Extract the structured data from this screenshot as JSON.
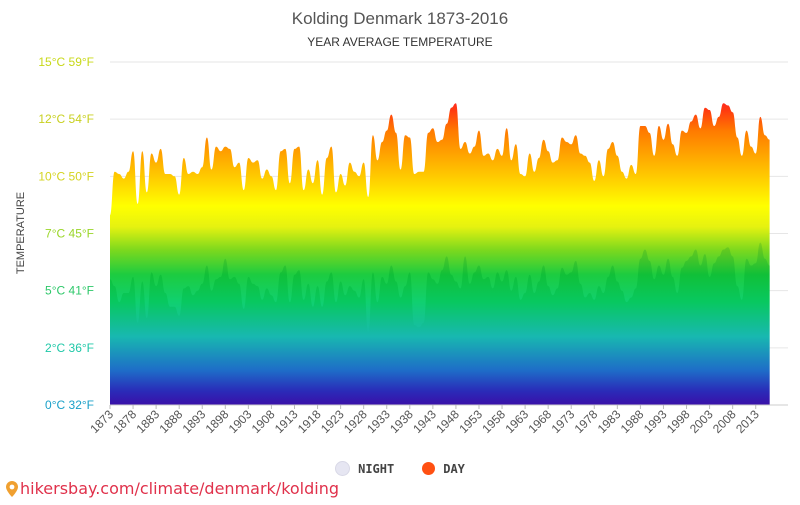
{
  "chart_data": {
    "type": "area",
    "title": "Kolding Denmark 1873-2016",
    "subtitle": "YEAR AVERAGE TEMPERATURE",
    "ylabel": "TEMPERATURE",
    "y_ticks": [
      {
        "value": 0,
        "label": "0°C 32°F",
        "color": "#1aa0c8"
      },
      {
        "value": 2.5,
        "label": "2°C 36°F",
        "color": "#20c8a8"
      },
      {
        "value": 5,
        "label": "5°C 41°F",
        "color": "#2ec86a"
      },
      {
        "value": 7.5,
        "label": "7°C 45°F",
        "color": "#9ad628"
      },
      {
        "value": 10,
        "label": "10°C 50°F",
        "color": "#d4d420"
      },
      {
        "value": 12.5,
        "label": "12°C 54°F",
        "color": "#c8d020"
      },
      {
        "value": 15,
        "label": "15°C 59°F",
        "color": "#c8d818"
      }
    ],
    "ylim": [
      0,
      15
    ],
    "x_tick_labels": [
      "1873",
      "1878",
      "1883",
      "1888",
      "1893",
      "1898",
      "1903",
      "1908",
      "1913",
      "1918",
      "1923",
      "1928",
      "1933",
      "1938",
      "1943",
      "1948",
      "1953",
      "1958",
      "1963",
      "1968",
      "1973",
      "1978",
      "1983",
      "1988",
      "1993",
      "1998",
      "2003",
      "2008",
      "2013"
    ],
    "x_start": 1873,
    "x_end": 2020,
    "series": [
      {
        "name": "DAY",
        "color": "#ff5500",
        "values": [
          [
            1873,
            8.3
          ],
          [
            1874,
            10.2
          ],
          [
            1875,
            10.1
          ],
          [
            1876,
            9.9
          ],
          [
            1877,
            10.2
          ],
          [
            1878,
            11.1
          ],
          [
            1879,
            8.8
          ],
          [
            1880,
            11.1
          ],
          [
            1881,
            9.3
          ],
          [
            1882,
            11.0
          ],
          [
            1883,
            10.6
          ],
          [
            1884,
            11.2
          ],
          [
            1885,
            10.1
          ],
          [
            1886,
            10.1
          ],
          [
            1887,
            10.0
          ],
          [
            1888,
            9.2
          ],
          [
            1889,
            10.8
          ],
          [
            1890,
            10.1
          ],
          [
            1891,
            10.2
          ],
          [
            1892,
            10.1
          ],
          [
            1893,
            10.4
          ],
          [
            1894,
            11.7
          ],
          [
            1895,
            10.3
          ],
          [
            1896,
            11.3
          ],
          [
            1897,
            11.1
          ],
          [
            1898,
            11.3
          ],
          [
            1899,
            11.2
          ],
          [
            1900,
            10.4
          ],
          [
            1901,
            10.6
          ],
          [
            1902,
            9.4
          ],
          [
            1903,
            10.8
          ],
          [
            1904,
            10.6
          ],
          [
            1905,
            10.7
          ],
          [
            1906,
            9.9
          ],
          [
            1907,
            10.3
          ],
          [
            1908,
            10.0
          ],
          [
            1909,
            9.4
          ],
          [
            1910,
            11.1
          ],
          [
            1911,
            11.2
          ],
          [
            1912,
            9.7
          ],
          [
            1913,
            11.2
          ],
          [
            1914,
            11.3
          ],
          [
            1915,
            9.4
          ],
          [
            1916,
            10.3
          ],
          [
            1917,
            9.7
          ],
          [
            1918,
            10.7
          ],
          [
            1919,
            9.2
          ],
          [
            1920,
            10.8
          ],
          [
            1921,
            11.3
          ],
          [
            1922,
            9.3
          ],
          [
            1923,
            10.1
          ],
          [
            1924,
            9.6
          ],
          [
            1925,
            10.6
          ],
          [
            1926,
            10.2
          ],
          [
            1927,
            10.0
          ],
          [
            1928,
            10.6
          ],
          [
            1929,
            9.1
          ],
          [
            1930,
            11.8
          ],
          [
            1931,
            10.7
          ],
          [
            1932,
            11.5
          ],
          [
            1933,
            12.0
          ],
          [
            1934,
            12.7
          ],
          [
            1935,
            11.9
          ],
          [
            1936,
            10.3
          ],
          [
            1937,
            11.8
          ],
          [
            1938,
            11.7
          ],
          [
            1939,
            10.1
          ],
          [
            1940,
            10.2
          ],
          [
            1941,
            10.2
          ],
          [
            1942,
            11.9
          ],
          [
            1943,
            12.1
          ],
          [
            1944,
            11.5
          ],
          [
            1945,
            11.6
          ],
          [
            1946,
            12.3
          ],
          [
            1947,
            13.0
          ],
          [
            1948,
            13.2
          ],
          [
            1949,
            11.2
          ],
          [
            1950,
            11.5
          ],
          [
            1951,
            11.0
          ],
          [
            1952,
            11.3
          ],
          [
            1953,
            12.0
          ],
          [
            1954,
            10.9
          ],
          [
            1955,
            11.0
          ],
          [
            1956,
            10.7
          ],
          [
            1957,
            11.2
          ],
          [
            1958,
            10.9
          ],
          [
            1959,
            12.1
          ],
          [
            1960,
            10.7
          ],
          [
            1961,
            11.4
          ],
          [
            1962,
            10.1
          ],
          [
            1963,
            10.0
          ],
          [
            1964,
            11.0
          ],
          [
            1965,
            10.2
          ],
          [
            1966,
            10.8
          ],
          [
            1967,
            11.6
          ],
          [
            1968,
            11.1
          ],
          [
            1969,
            10.6
          ],
          [
            1970,
            10.7
          ],
          [
            1971,
            11.7
          ],
          [
            1972,
            11.5
          ],
          [
            1973,
            11.4
          ],
          [
            1974,
            11.8
          ],
          [
            1975,
            11.0
          ],
          [
            1976,
            10.9
          ],
          [
            1977,
            10.6
          ],
          [
            1978,
            9.8
          ],
          [
            1979,
            10.7
          ],
          [
            1980,
            10.0
          ],
          [
            1981,
            11.2
          ],
          [
            1982,
            11.5
          ],
          [
            1983,
            10.9
          ],
          [
            1984,
            10.2
          ],
          [
            1985,
            9.9
          ],
          [
            1986,
            10.5
          ],
          [
            1987,
            10.1
          ],
          [
            1988,
            12.2
          ],
          [
            1989,
            12.2
          ],
          [
            1990,
            11.9
          ],
          [
            1991,
            10.9
          ],
          [
            1992,
            12.2
          ],
          [
            1993,
            11.6
          ],
          [
            1994,
            12.3
          ],
          [
            1995,
            11.4
          ],
          [
            1996,
            10.9
          ],
          [
            1997,
            12.0
          ],
          [
            1998,
            11.9
          ],
          [
            1999,
            12.4
          ],
          [
            2000,
            12.7
          ],
          [
            2001,
            12.1
          ],
          [
            2002,
            13.0
          ],
          [
            2003,
            12.9
          ],
          [
            2004,
            12.2
          ],
          [
            2005,
            12.6
          ],
          [
            2006,
            13.2
          ],
          [
            2007,
            13.1
          ],
          [
            2008,
            12.8
          ],
          [
            2009,
            11.7
          ],
          [
            2010,
            10.9
          ],
          [
            2011,
            12.0
          ],
          [
            2012,
            11.3
          ],
          [
            2013,
            11.0
          ],
          [
            2014,
            12.6
          ],
          [
            2015,
            11.8
          ],
          [
            2016,
            11.6
          ]
        ]
      },
      {
        "name": "NIGHT",
        "color": "#e0e0ee",
        "values": [
          [
            1873,
            5.5
          ],
          [
            1874,
            5.2
          ],
          [
            1875,
            4.5
          ],
          [
            1876,
            4.9
          ],
          [
            1877,
            4.9
          ],
          [
            1878,
            5.6
          ],
          [
            1879,
            3.6
          ],
          [
            1880,
            5.4
          ],
          [
            1881,
            3.8
          ],
          [
            1882,
            5.8
          ],
          [
            1883,
            5.2
          ],
          [
            1884,
            5.7
          ],
          [
            1885,
            4.9
          ],
          [
            1886,
            4.3
          ],
          [
            1887,
            4.3
          ],
          [
            1888,
            3.9
          ],
          [
            1889,
            5.1
          ],
          [
            1890,
            5.2
          ],
          [
            1891,
            4.8
          ],
          [
            1892,
            5.0
          ],
          [
            1893,
            5.3
          ],
          [
            1894,
            6.1
          ],
          [
            1895,
            5.0
          ],
          [
            1896,
            5.5
          ],
          [
            1897,
            5.6
          ],
          [
            1898,
            6.4
          ],
          [
            1899,
            5.5
          ],
          [
            1900,
            5.6
          ],
          [
            1901,
            5.3
          ],
          [
            1902,
            4.2
          ],
          [
            1903,
            5.6
          ],
          [
            1904,
            5.3
          ],
          [
            1905,
            5.2
          ],
          [
            1906,
            4.6
          ],
          [
            1907,
            5.1
          ],
          [
            1908,
            4.8
          ],
          [
            1909,
            4.5
          ],
          [
            1910,
            5.8
          ],
          [
            1911,
            6.1
          ],
          [
            1912,
            4.5
          ],
          [
            1913,
            5.7
          ],
          [
            1914,
            5.9
          ],
          [
            1915,
            4.6
          ],
          [
            1916,
            5.3
          ],
          [
            1917,
            4.3
          ],
          [
            1918,
            5.2
          ],
          [
            1919,
            4.3
          ],
          [
            1920,
            5.4
          ],
          [
            1921,
            5.8
          ],
          [
            1922,
            4.5
          ],
          [
            1923,
            5.4
          ],
          [
            1924,
            4.8
          ],
          [
            1925,
            5.2
          ],
          [
            1926,
            5.0
          ],
          [
            1927,
            4.7
          ],
          [
            1928,
            5.5
          ],
          [
            1929,
            3.2
          ],
          [
            1930,
            5.8
          ],
          [
            1931,
            4.5
          ],
          [
            1932,
            5.6
          ],
          [
            1933,
            5.3
          ],
          [
            1934,
            6.1
          ],
          [
            1935,
            5.4
          ],
          [
            1936,
            4.7
          ],
          [
            1937,
            5.2
          ],
          [
            1938,
            5.8
          ],
          [
            1939,
            3.5
          ],
          [
            1940,
            3.4
          ],
          [
            1941,
            3.6
          ],
          [
            1942,
            5.8
          ],
          [
            1943,
            5.5
          ],
          [
            1944,
            5.3
          ],
          [
            1945,
            5.9
          ],
          [
            1946,
            6.5
          ],
          [
            1947,
            5.7
          ],
          [
            1948,
            5.4
          ],
          [
            1949,
            5.1
          ],
          [
            1950,
            6.5
          ],
          [
            1951,
            5.3
          ],
          [
            1952,
            5.8
          ],
          [
            1953,
            6.1
          ],
          [
            1954,
            5.5
          ],
          [
            1955,
            5.6
          ],
          [
            1956,
            5.1
          ],
          [
            1957,
            5.8
          ],
          [
            1958,
            5.4
          ],
          [
            1959,
            5.9
          ],
          [
            1960,
            5.0
          ],
          [
            1961,
            5.6
          ],
          [
            1962,
            4.6
          ],
          [
            1963,
            4.9
          ],
          [
            1964,
            5.7
          ],
          [
            1965,
            4.9
          ],
          [
            1966,
            5.4
          ],
          [
            1967,
            6.1
          ],
          [
            1968,
            5.2
          ],
          [
            1969,
            4.8
          ],
          [
            1970,
            5.1
          ],
          [
            1971,
            6.0
          ],
          [
            1972,
            5.7
          ],
          [
            1973,
            5.8
          ],
          [
            1974,
            6.3
          ],
          [
            1975,
            5.3
          ],
          [
            1976,
            4.7
          ],
          [
            1977,
            4.9
          ],
          [
            1978,
            4.6
          ],
          [
            1979,
            5.2
          ],
          [
            1980,
            4.9
          ],
          [
            1981,
            5.6
          ],
          [
            1982,
            6.1
          ],
          [
            1983,
            5.4
          ],
          [
            1984,
            5.0
          ],
          [
            1985,
            4.5
          ],
          [
            1986,
            4.7
          ],
          [
            1987,
            5.1
          ],
          [
            1988,
            6.4
          ],
          [
            1989,
            6.8
          ],
          [
            1990,
            6.3
          ],
          [
            1991,
            5.5
          ],
          [
            1992,
            6.1
          ],
          [
            1993,
            5.7
          ],
          [
            1994,
            6.4
          ],
          [
            1995,
            5.6
          ],
          [
            1996,
            4.9
          ],
          [
            1997,
            6.0
          ],
          [
            1998,
            6.3
          ],
          [
            1999,
            6.5
          ],
          [
            2000,
            6.8
          ],
          [
            2001,
            6.1
          ],
          [
            2002,
            6.6
          ],
          [
            2003,
            5.6
          ],
          [
            2004,
            6.2
          ],
          [
            2005,
            6.5
          ],
          [
            2006,
            6.8
          ],
          [
            2007,
            6.9
          ],
          [
            2008,
            6.5
          ],
          [
            2009,
            5.2
          ],
          [
            2010,
            4.6
          ],
          [
            2011,
            6.4
          ],
          [
            2012,
            6.1
          ],
          [
            2013,
            6.2
          ],
          [
            2014,
            7.1
          ],
          [
            2015,
            6.4
          ],
          [
            2016,
            6.1
          ]
        ]
      }
    ],
    "grid": true,
    "legend_position": "bottom-center"
  },
  "legend": {
    "night_label": "NIGHT",
    "day_label": "DAY",
    "night_color": "#e4e4f0",
    "day_color": "#ff5a1a"
  },
  "footer": {
    "link_text": "hikersbay.com/climate/denmark/kolding",
    "icon": "map-pin-icon"
  }
}
